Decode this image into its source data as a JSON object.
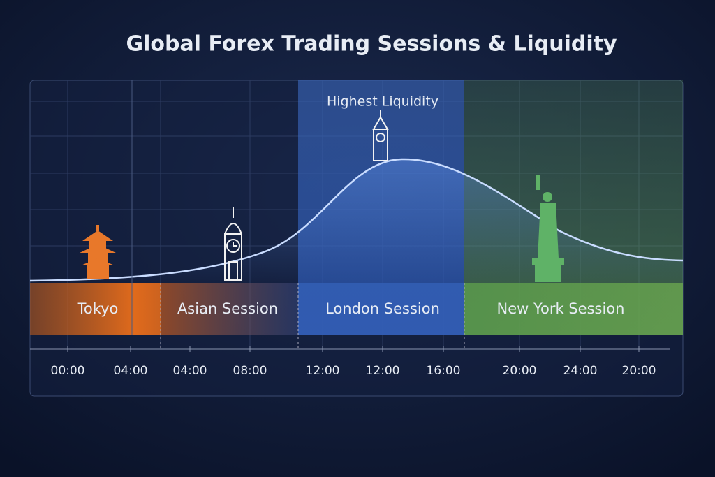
{
  "title": "Global Forex Trading Sessions & Liquidity",
  "annotation": "Highest Liquidity",
  "sessions": [
    "Tokyo",
    "Asian Session",
    "London Session",
    "New York Session"
  ],
  "time_labels": [
    "00:00",
    "04:00",
    "04:00",
    "08:00",
    "12:00",
    "12:00",
    "16:00",
    "20:00",
    "24:00",
    "20:00"
  ]
}
